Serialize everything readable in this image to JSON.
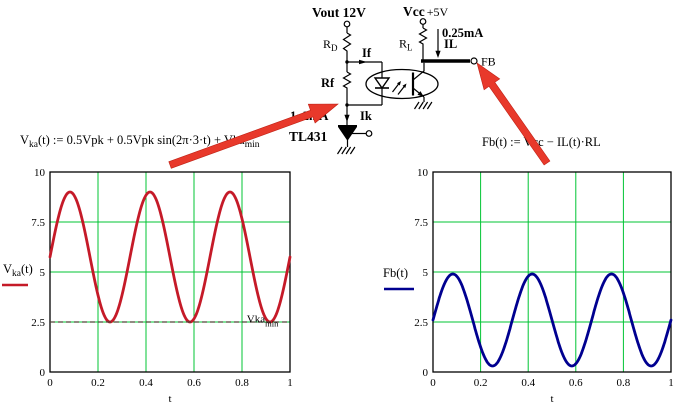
{
  "circuit": {
    "vout_label": "Vout 12V",
    "vcc_label": "Vcc",
    "vcc_value": "+5V",
    "rd": {
      "base": "R",
      "sub": "D"
    },
    "rl": {
      "base": "R",
      "sub": "L"
    },
    "rf_label": "Rf",
    "if_label": "If",
    "il_value": "0.25mA",
    "il_label": "IL",
    "ik_value": "1~2mA",
    "ik_label": "Ik",
    "tl431_label": "TL431",
    "fb_label": "FB"
  },
  "formulas": {
    "left": {
      "v": "V",
      "v_sub": "ka",
      "body": "(t) := 0.5Vpk + 0.5Vpk sin(2π·3·t) + Vka",
      "tail_sub": "min"
    },
    "right": "Fb(t) := Vcc − IL(t)·RL"
  },
  "colors": {
    "grid_green": "#00c433",
    "vka_red": "#c51a28",
    "fb_blue": "#000090",
    "arrow_red": "#e8392b",
    "dashed_min": "#4d4436"
  },
  "chart_data": [
    {
      "type": "line",
      "name": "vka-plot",
      "title": "",
      "xlabel": "t",
      "ylabel": "Vka(t)",
      "xlim": [
        0,
        1
      ],
      "ylim": [
        0,
        10
      ],
      "x_ticks": [
        0,
        0.2,
        0.4,
        0.6,
        0.8,
        1
      ],
      "y_ticks": [
        0,
        2.5,
        5,
        7.5,
        10
      ],
      "grid_color": "#00c433",
      "legend": {
        "base": "V",
        "sub": "ka",
        "rest": "(t)"
      },
      "series": [
        {
          "name": "Vka",
          "type": "sine",
          "center": 5.75,
          "amplitude": 3.25,
          "frequency": 3,
          "phase": 0,
          "color": "#c51a28",
          "width": 2.8
        },
        {
          "name": "Vka-min",
          "type": "constant",
          "value": 2.5,
          "color": "#4d4436",
          "dash": "5,3",
          "width": 1.2
        }
      ],
      "annotation": {
        "base": "Vka",
        "sub": "min",
        "x": 0.82,
        "y": 2.62
      }
    },
    {
      "type": "line",
      "name": "fb-plot",
      "title": "",
      "xlabel": "t",
      "ylabel": "Fb(t)",
      "xlim": [
        0,
        1
      ],
      "ylim": [
        0,
        10
      ],
      "x_ticks": [
        0,
        0.2,
        0.4,
        0.6,
        0.8,
        1
      ],
      "y_ticks": [
        0,
        2.5,
        5,
        7.5,
        10
      ],
      "grid_color": "#00c433",
      "legend": {
        "base": "Fb",
        "sub": "",
        "rest": "(t)"
      },
      "series": [
        {
          "name": "Fb",
          "type": "sine",
          "center": 2.6,
          "amplitude": 2.3,
          "frequency": 3,
          "phase": 0,
          "color": "#000090",
          "width": 2.8
        }
      ]
    }
  ]
}
